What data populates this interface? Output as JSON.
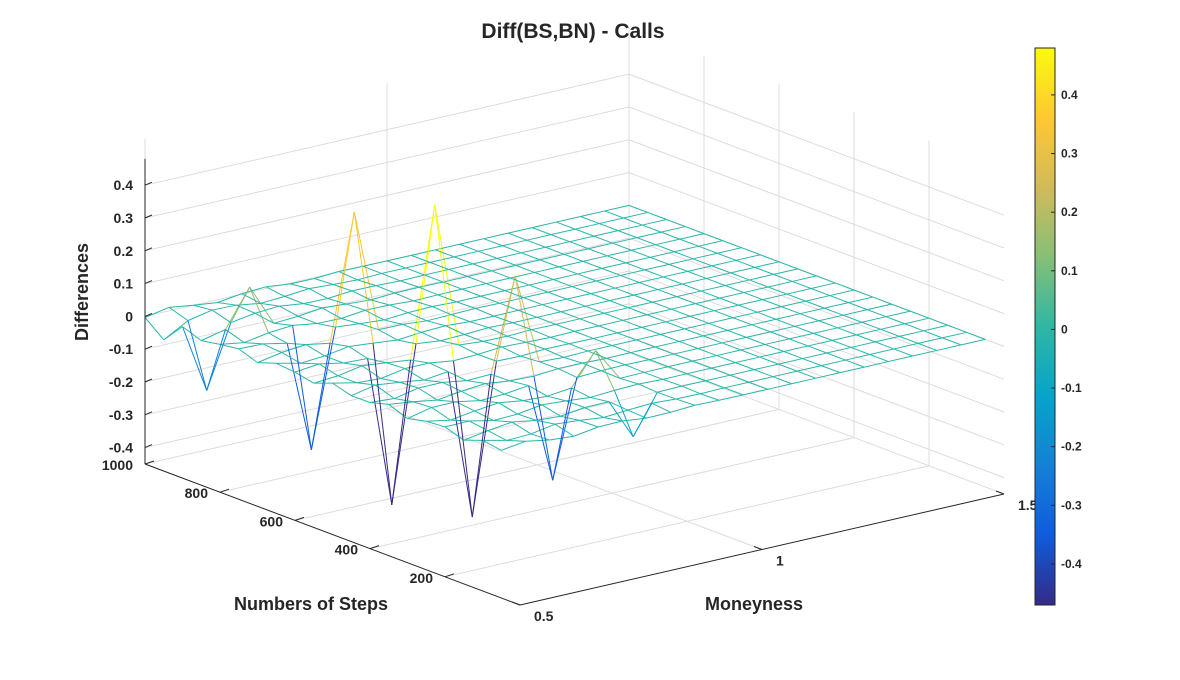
{
  "chart_data": {
    "type": "surface",
    "title": "Diff(BS,BN) - Calls",
    "xlabel": "Moneyness",
    "ylabel": "Numbers of Steps",
    "zlabel": "Differences",
    "x_ticks": [
      "0.5",
      "1",
      "1.5"
    ],
    "y_ticks": [
      "200",
      "400",
      "600",
      "800",
      "1000"
    ],
    "z_ticks": [
      "-0.4",
      "-0.3",
      "-0.2",
      "-0.1",
      "0",
      "0.1",
      "0.2",
      "0.3",
      "0.4"
    ],
    "xlim": [
      0.5,
      1.5
    ],
    "ylim": [
      0,
      1000
    ],
    "zlim": [
      -0.45,
      0.45
    ],
    "grid": true,
    "colormap": "parula",
    "colorbar": {
      "placement": "right",
      "range": [
        -0.47,
        0.48
      ],
      "ticks": [
        "-0.4",
        "-0.3",
        "-0.2",
        "-0.1",
        "0",
        "0.1",
        "0.2",
        "0.3",
        "0.4"
      ],
      "colors": [
        "#352a87",
        "#0f5cdd",
        "#1481d6",
        "#06a4ca",
        "#2eb7a4",
        "#87bf77",
        "#d1bb59",
        "#fec832",
        "#f9fb0e"
      ]
    },
    "surface": {
      "x_range": [
        0.5,
        1.5
      ],
      "y_range": [
        50,
        1000
      ],
      "nx": 21,
      "ny": 20,
      "baseline": 0,
      "edge_color": "#2ab7a8",
      "spikes": [
        {
          "x": 0.5,
          "y": 950,
          "z": -0.05
        },
        {
          "x": 0.55,
          "y": 900,
          "z": -0.2
        },
        {
          "x": 0.6,
          "y": 850,
          "z": 0.12
        },
        {
          "x": 0.65,
          "y": 750,
          "z": -0.35
        },
        {
          "x": 0.7,
          "y": 700,
          "z": 0.38
        },
        {
          "x": 0.7,
          "y": 600,
          "z": -0.47
        },
        {
          "x": 0.75,
          "y": 550,
          "z": 0.45
        },
        {
          "x": 0.75,
          "y": 450,
          "z": -0.46
        },
        {
          "x": 0.8,
          "y": 400,
          "z": 0.28
        },
        {
          "x": 0.8,
          "y": 300,
          "z": -0.3
        },
        {
          "x": 0.85,
          "y": 250,
          "z": 0.1
        },
        {
          "x": 0.85,
          "y": 150,
          "z": -0.12
        }
      ]
    }
  }
}
